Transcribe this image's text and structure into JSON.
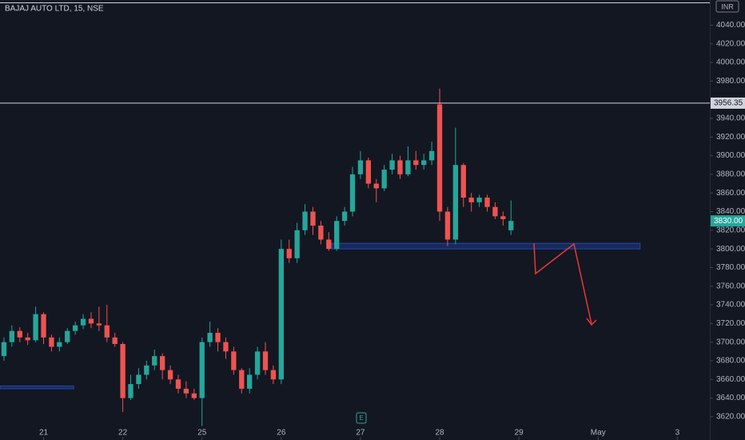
{
  "chart_data": {
    "type": "candlestick",
    "title": "BAJAJ AUTO LTD, 15, NSE",
    "currency": "INR",
    "up_color": "#26a69a",
    "down_color": "#ef5350",
    "open": [
      3685,
      3700,
      3712,
      3705,
      3702,
      3730,
      3705,
      3695,
      3700,
      3712,
      3718,
      3725,
      3720,
      3718,
      3705,
      3698,
      3640,
      3655,
      3665,
      3675,
      3685,
      3670,
      3660,
      3650,
      3645,
      3640,
      3700,
      3710,
      3700,
      3690,
      3670,
      3650,
      3665,
      3690,
      3670,
      3660,
      3800,
      3790,
      3820,
      3840,
      3825,
      3810,
      3800,
      3830,
      3840,
      3880,
      3895,
      3870,
      3865,
      3885,
      3895,
      3880,
      3895,
      3890,
      3895,
      3955,
      3840,
      3810,
      3890,
      3855,
      3850,
      3855,
      3845,
      3835,
      3820
    ],
    "high": [
      3705,
      3718,
      3716,
      3710,
      3738,
      3732,
      3708,
      3705,
      3715,
      3722,
      3730,
      3732,
      3738,
      3740,
      3710,
      3700,
      3665,
      3672,
      3680,
      3692,
      3688,
      3675,
      3665,
      3658,
      3650,
      3705,
      3722,
      3715,
      3705,
      3695,
      3672,
      3672,
      3695,
      3700,
      3675,
      3810,
      3810,
      3828,
      3848,
      3845,
      3830,
      3818,
      3835,
      3845,
      3888,
      3905,
      3898,
      3875,
      3890,
      3902,
      3900,
      3910,
      3905,
      3902,
      3915,
      3972,
      3845,
      3930,
      3892,
      3860,
      3858,
      3858,
      3850,
      3840,
      3852
    ],
    "low": [
      3680,
      3695,
      3700,
      3697,
      3700,
      3698,
      3690,
      3690,
      3698,
      3708,
      3714,
      3715,
      3712,
      3700,
      3695,
      3625,
      3638,
      3650,
      3660,
      3670,
      3660,
      3655,
      3645,
      3640,
      3638,
      3610,
      3695,
      3690,
      3682,
      3665,
      3645,
      3645,
      3660,
      3665,
      3655,
      3655,
      3785,
      3785,
      3815,
      3815,
      3805,
      3798,
      3798,
      3825,
      3835,
      3875,
      3865,
      3850,
      3862,
      3880,
      3875,
      3878,
      3885,
      3885,
      3890,
      3830,
      3803,
      3805,
      3845,
      3840,
      3845,
      3840,
      3832,
      3825,
      3815
    ],
    "close": [
      3700,
      3712,
      3705,
      3702,
      3730,
      3705,
      3695,
      3700,
      3712,
      3718,
      3725,
      3720,
      3718,
      3705,
      3698,
      3640,
      3655,
      3665,
      3675,
      3685,
      3670,
      3660,
      3650,
      3645,
      3640,
      3700,
      3710,
      3700,
      3690,
      3670,
      3650,
      3665,
      3690,
      3670,
      3660,
      3800,
      3790,
      3820,
      3840,
      3825,
      3810,
      3800,
      3830,
      3840,
      3880,
      3895,
      3870,
      3865,
      3885,
      3895,
      3880,
      3895,
      3890,
      3895,
      3905,
      3840,
      3810,
      3890,
      3855,
      3850,
      3855,
      3845,
      3835,
      3832,
      3830
    ],
    "xlim": [
      -0.5,
      89.1
    ],
    "xticks": [
      {
        "value": 5,
        "label": "21"
      },
      {
        "value": 15,
        "label": "22"
      },
      {
        "value": 25,
        "label": "25"
      },
      {
        "value": 35,
        "label": "26"
      },
      {
        "value": 45,
        "label": "27"
      },
      {
        "value": 55,
        "label": "28"
      },
      {
        "value": 65,
        "label": "29"
      },
      {
        "value": 75,
        "label": "May"
      },
      {
        "value": 85,
        "label": "3"
      }
    ],
    "ylim": [
      3595,
      4067
    ],
    "yticks": [
      {
        "value": 3620,
        "label": "3620.00"
      },
      {
        "value": 3640,
        "label": "3640.00"
      },
      {
        "value": 3660,
        "label": "3660.00"
      },
      {
        "value": 3680,
        "label": "3680.00"
      },
      {
        "value": 3700,
        "label": "3700.00"
      },
      {
        "value": 3720,
        "label": "3720.00"
      },
      {
        "value": 3740,
        "label": "3740.00"
      },
      {
        "value": 3760,
        "label": "3760.00"
      },
      {
        "value": 3780,
        "label": "3780.00"
      },
      {
        "value": 3800,
        "label": "3800.00"
      },
      {
        "value": 3820,
        "label": "3820.00"
      },
      {
        "value": 3840,
        "label": "3840.00"
      },
      {
        "value": 3860,
        "label": "3860.00"
      },
      {
        "value": 3880,
        "label": "3880.00"
      },
      {
        "value": 3900,
        "label": "3900.00"
      },
      {
        "value": 3920,
        "label": "3920.00"
      },
      {
        "value": 3940,
        "label": "3940.00"
      },
      {
        "value": 3980,
        "label": "3980.00"
      },
      {
        "value": 4000,
        "label": "4000.00"
      },
      {
        "value": 4020,
        "label": "4020.00"
      },
      {
        "value": 4040,
        "label": "4040.00"
      }
    ],
    "hlines": [
      3956.35,
      4064
    ],
    "last_price": {
      "value": 3830,
      "label": "3830.00"
    },
    "zones": [
      {
        "y0": 3800,
        "y1": 3806,
        "x0": 41.4,
        "x1": 80.3
      },
      {
        "y0": 3650,
        "y1": 3653,
        "x0": -0.5,
        "x1": 8.8
      }
    ]
  }
}
